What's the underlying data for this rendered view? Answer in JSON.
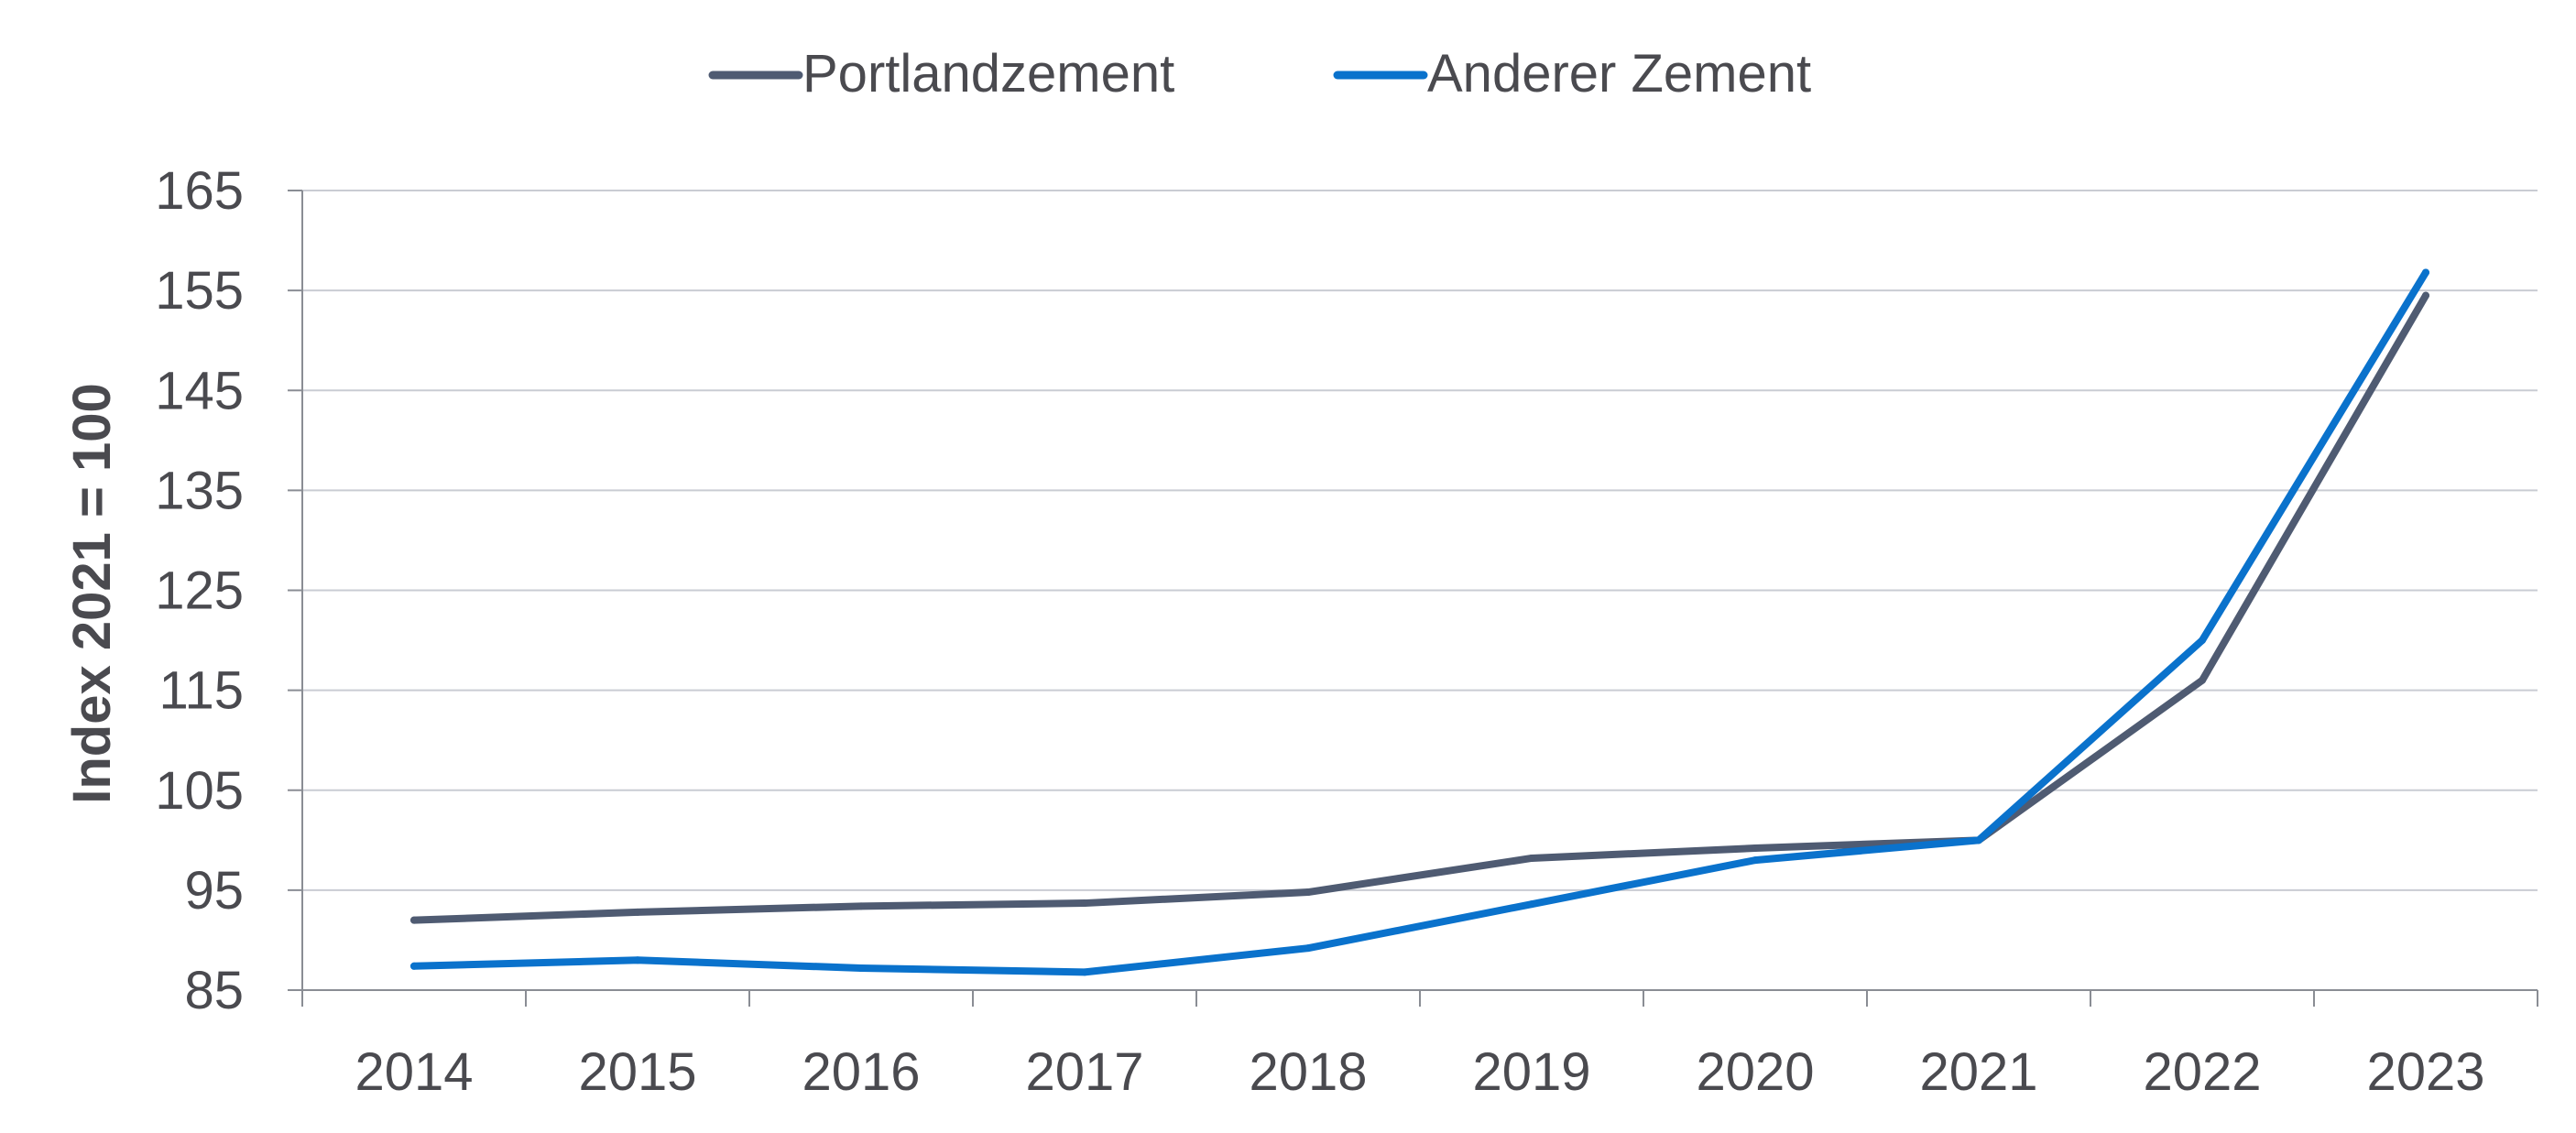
{
  "chart_data": {
    "type": "line",
    "title": "",
    "xlabel": "",
    "ylabel": "Index 2021 = 100",
    "categories": [
      "2014",
      "2015",
      "2016",
      "2017",
      "2018",
      "2019",
      "2020",
      "2021",
      "2022",
      "2023"
    ],
    "ylim": [
      85,
      165
    ],
    "yticks": [
      85,
      95,
      105,
      115,
      125,
      135,
      145,
      155,
      165
    ],
    "grid": true,
    "legend_position": "top-center",
    "series": [
      {
        "name": "Portlandzement",
        "color": "#4f5b72",
        "values": [
          92.0,
          92.8,
          93.4,
          93.7,
          94.8,
          98.2,
          99.2,
          100.0,
          116.0,
          154.5
        ]
      },
      {
        "name": "Anderer Zement",
        "color": "#0a72cc",
        "values": [
          87.4,
          88.0,
          87.2,
          86.8,
          89.2,
          93.6,
          98.0,
          100.0,
          120.0,
          156.8
        ]
      }
    ]
  }
}
